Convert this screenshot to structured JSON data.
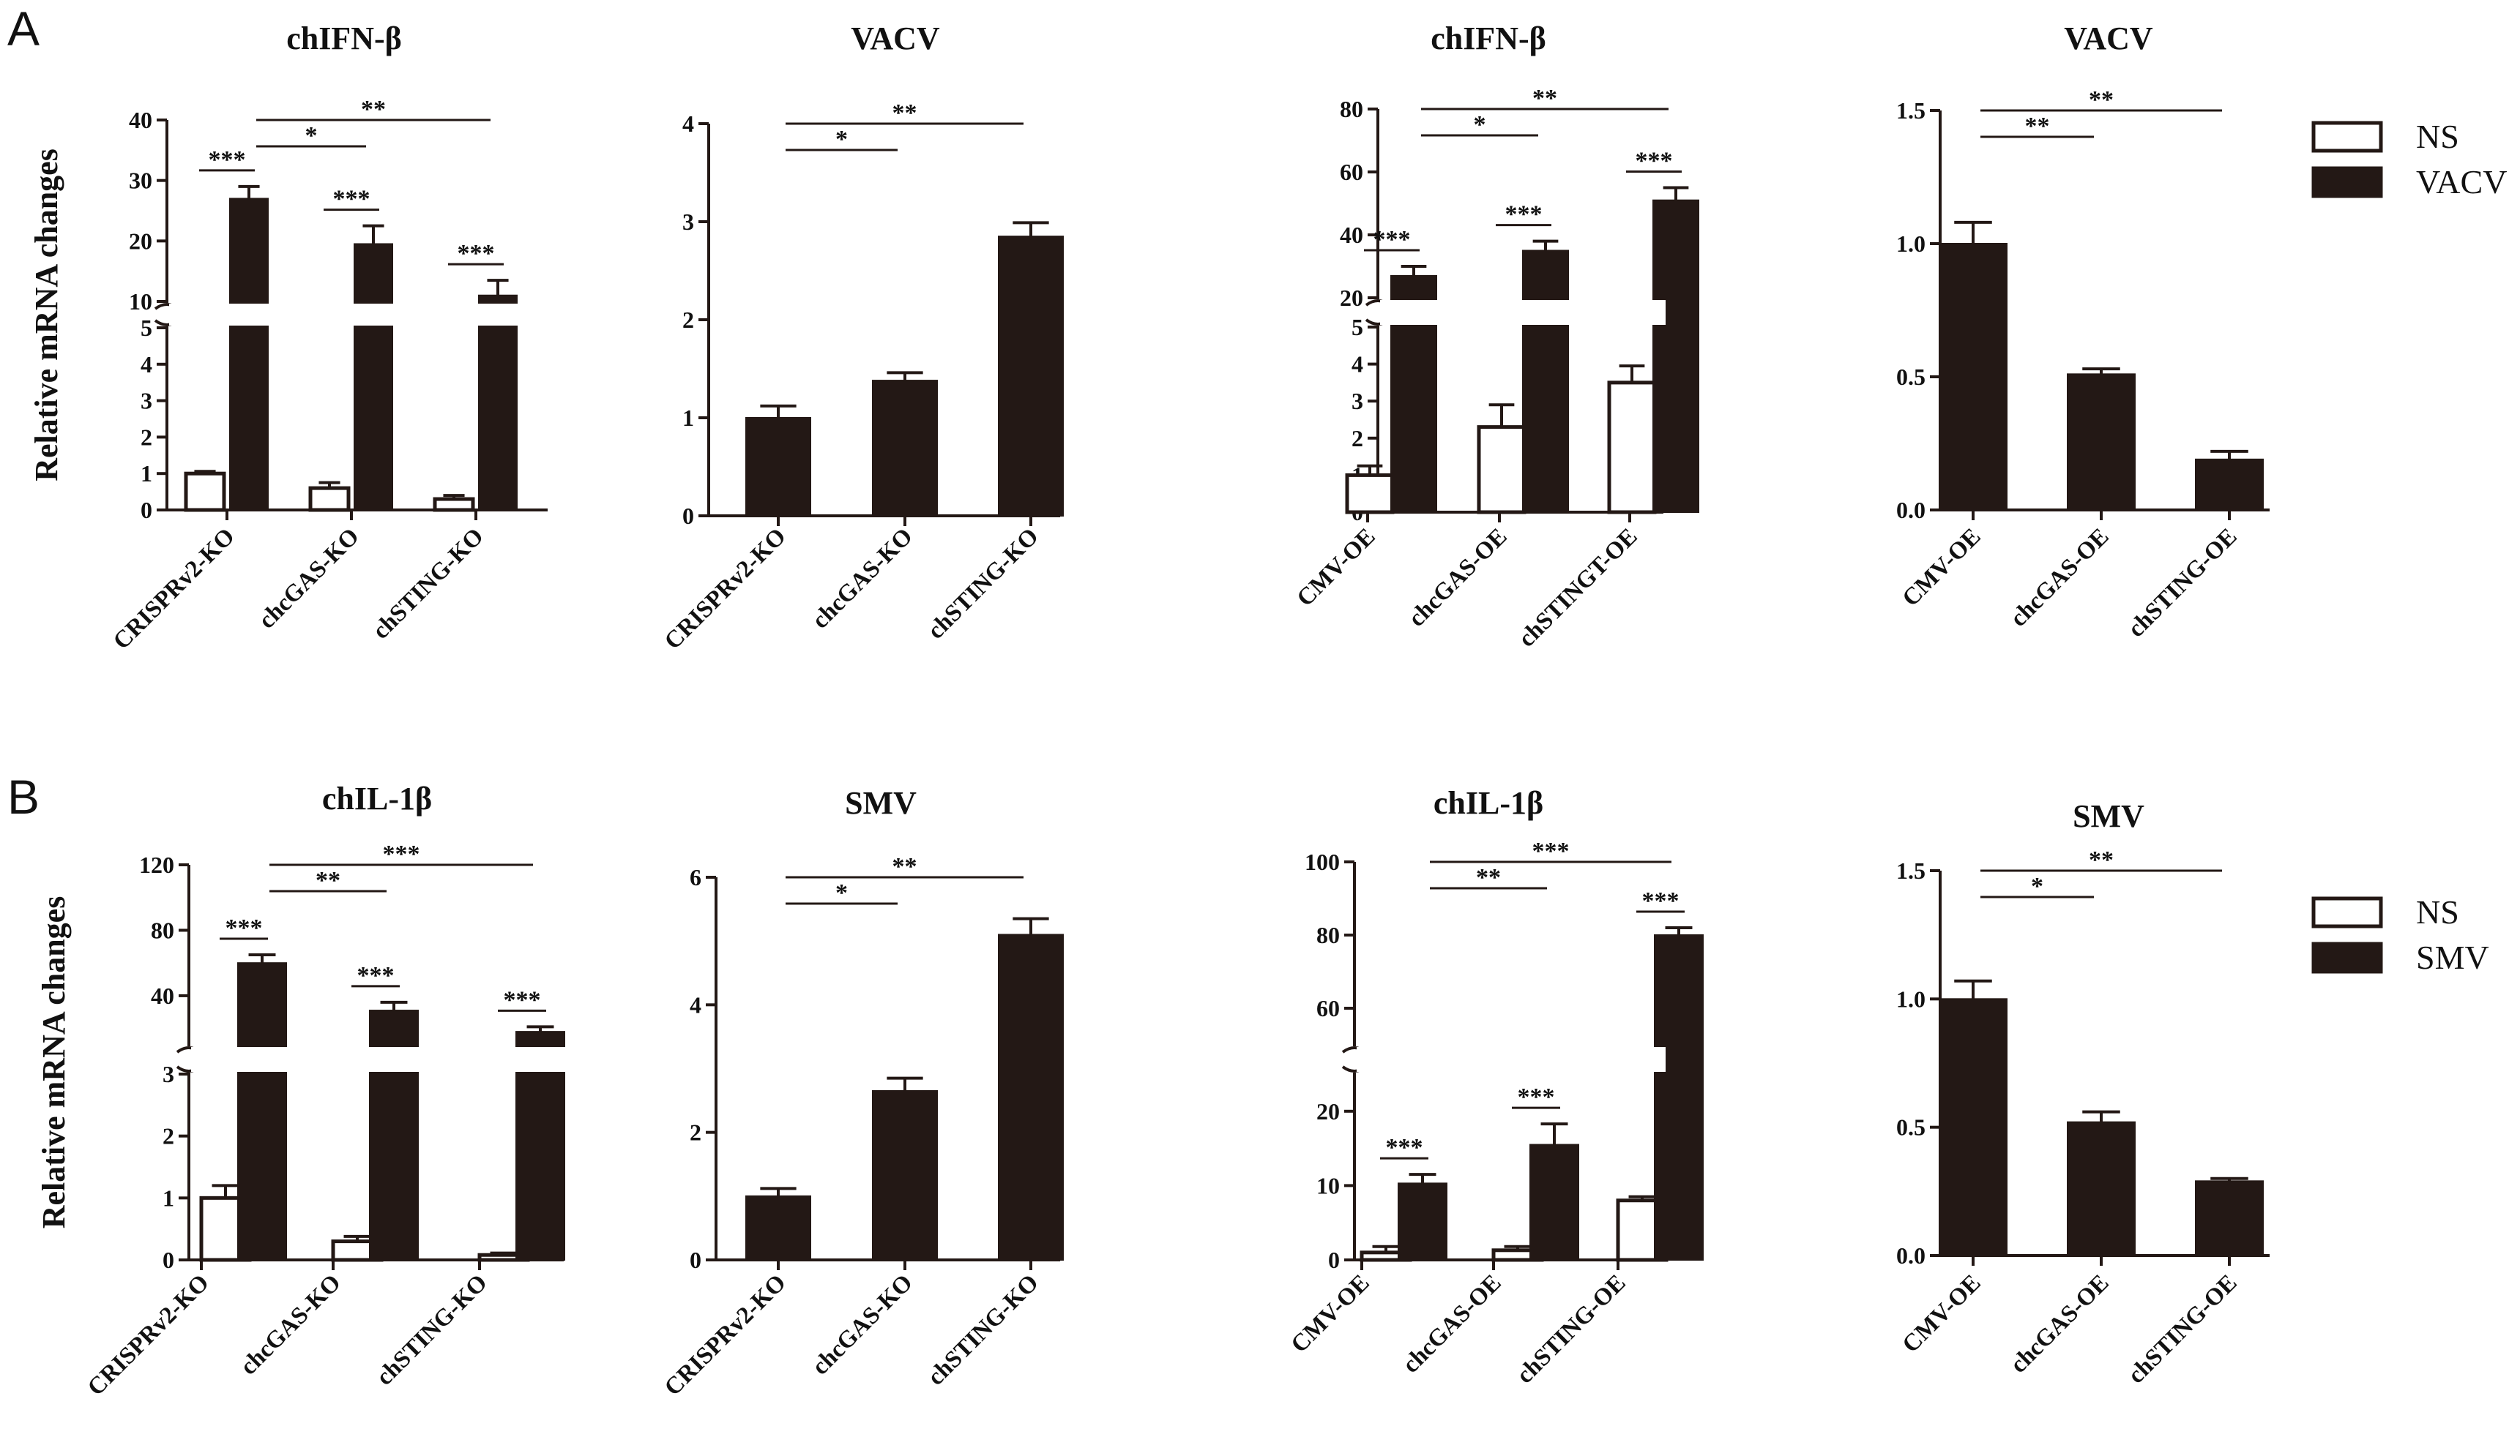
{
  "panel_labels": [
    "A",
    "B"
  ],
  "y_axis_label": "Relative mRNA changes",
  "legends": [
    {
      "entries": [
        {
          "label": "NS",
          "color": "#ffffff"
        },
        {
          "label": "VACV",
          "color": "#231815"
        }
      ]
    },
    {
      "entries": [
        {
          "label": "NS",
          "color": "#ffffff"
        },
        {
          "label": "SMV",
          "color": "#231815"
        }
      ]
    }
  ],
  "chart_data": [
    {
      "type": "bar",
      "title": "chIFN-β",
      "ylabel": "Relative mRNA changes",
      "broken_axis": true,
      "categories": [
        "CRISPRv2-KO",
        "chcGAS-KO",
        "chSTING-KO"
      ],
      "series": [
        {
          "name": "NS",
          "values": [
            1.0,
            0.6,
            0.3
          ],
          "errors": [
            0.06,
            0.15,
            0.1
          ]
        },
        {
          "name": "VACV",
          "values": [
            27,
            19.5,
            11
          ],
          "errors": [
            2,
            3,
            2.5
          ]
        }
      ],
      "ylim_lower": [
        0,
        5
      ],
      "ylim_upper": [
        10,
        40
      ],
      "yticks_lower": [
        0,
        1,
        2,
        3,
        4,
        5
      ],
      "yticks_upper": [
        10,
        20,
        30,
        40
      ],
      "ytick_labels_lower": [
        "0",
        "1",
        "2",
        "3",
        "4",
        "5"
      ],
      "ytick_labels_upper": [
        "10",
        "20",
        "30",
        "40"
      ],
      "annotations": [
        {
          "text": "***",
          "from": "CRISPRv2-KO:NS",
          "to": "CRISPRv2-KO:VACV"
        },
        {
          "text": "***",
          "from": "chcGAS-KO:NS",
          "to": "chcGAS-KO:VACV"
        },
        {
          "text": "***",
          "from": "chSTING-KO:NS",
          "to": "chSTING-KO:VACV"
        },
        {
          "text": "*",
          "from": "CRISPRv2-KO:VACV",
          "to": "chcGAS-KO:VACV"
        },
        {
          "text": "**",
          "from": "CRISPRv2-KO:VACV",
          "to": "chSTING-KO:VACV"
        }
      ]
    },
    {
      "type": "bar",
      "title": "VACV",
      "categories": [
        "CRISPRv2-KO",
        "chcGAS-KO",
        "chSTING-KO"
      ],
      "series": [
        {
          "name": "VACV",
          "values": [
            1.0,
            1.38,
            2.85
          ],
          "errors": [
            0.12,
            0.08,
            0.14
          ]
        }
      ],
      "ylim": [
        0,
        4
      ],
      "yticks": [
        0,
        1,
        2,
        3,
        4
      ],
      "ytick_labels": [
        "0",
        "1",
        "2",
        "3",
        "4"
      ],
      "annotations": [
        {
          "text": "*",
          "from": "CRISPRv2-KO:VACV",
          "to": "chcGAS-KO:VACV"
        },
        {
          "text": "**",
          "from": "CRISPRv2-KO:VACV",
          "to": "chSTING-KO:VACV"
        }
      ]
    },
    {
      "type": "bar",
      "title": "chIFN-β",
      "broken_axis": true,
      "categories": [
        "CMV-OE",
        "chcGAS-OE",
        "chSTINGT-OE"
      ],
      "series": [
        {
          "name": "NS",
          "values": [
            1.0,
            2.3,
            3.5
          ],
          "errors": [
            0.25,
            0.6,
            0.45
          ]
        },
        {
          "name": "VACV",
          "values": [
            27,
            35,
            51
          ],
          "errors": [
            3,
            3,
            4
          ]
        }
      ],
      "ylim_lower": [
        0,
        5
      ],
      "ylim_upper": [
        20,
        80
      ],
      "yticks_lower": [
        0,
        1,
        2,
        3,
        4,
        5
      ],
      "yticks_upper": [
        20,
        40,
        60,
        80
      ],
      "ytick_labels_lower": [
        "0",
        "1",
        "2",
        "3",
        "4",
        "5"
      ],
      "ytick_labels_upper": [
        "20",
        "40",
        "60",
        "80"
      ],
      "annotations": [
        {
          "text": "***",
          "from": "CMV-OE:NS",
          "to": "CMV-OE:VACV"
        },
        {
          "text": "***",
          "from": "chcGAS-OE:NS",
          "to": "chcGAS-OE:VACV"
        },
        {
          "text": "***",
          "from": "chSTINGT-OE:NS",
          "to": "chSTINGT-OE:VACV"
        },
        {
          "text": "*",
          "from": "CMV-OE:VACV",
          "to": "chcGAS-OE:VACV"
        },
        {
          "text": "**",
          "from": "CMV-OE:VACV",
          "to": "chSTINGT-OE:VACV"
        }
      ]
    },
    {
      "type": "bar",
      "title": "VACV",
      "categories": [
        "CMV-OE",
        "chcGAS-OE",
        "chSTING-OE"
      ],
      "series": [
        {
          "name": "VACV",
          "values": [
            1.0,
            0.51,
            0.19
          ],
          "errors": [
            0.08,
            0.02,
            0.03
          ]
        }
      ],
      "ylim": [
        0,
        1.5
      ],
      "yticks": [
        0,
        0.5,
        1.0,
        1.5
      ],
      "ytick_labels": [
        "0.0",
        "0.5",
        "1.0",
        "1.5"
      ],
      "annotations": [
        {
          "text": "**",
          "from": "CMV-OE:VACV",
          "to": "chcGAS-OE:VACV"
        },
        {
          "text": "**",
          "from": "CMV-OE:VACV",
          "to": "chSTING-OE:VACV"
        }
      ]
    },
    {
      "type": "bar",
      "title": "chIL-1β",
      "ylabel": "Relative mRNA changes",
      "broken_axis": true,
      "categories": [
        "CRISPRv2-KO",
        "chcGAS-KO",
        "chSTING-KO"
      ],
      "series": [
        {
          "name": "NS",
          "values": [
            1.0,
            0.3,
            0.08
          ],
          "errors": [
            0.2,
            0.08,
            0.03
          ]
        },
        {
          "name": "SMV",
          "values": [
            60,
            31,
            18
          ],
          "errors": [
            5,
            5,
            3
          ]
        }
      ],
      "ylim_lower": [
        0,
        3
      ],
      "ylim_upper": [
        10,
        120
      ],
      "yticks_lower": [
        0,
        1,
        2,
        3
      ],
      "yticks_upper": [
        40,
        80,
        120
      ],
      "ytick_labels_lower": [
        "0",
        "1",
        "2",
        "3"
      ],
      "ytick_labels_upper": [
        "40",
        "80",
        "120"
      ],
      "annotations": [
        {
          "text": "***",
          "from": "CRISPRv2-KO:NS",
          "to": "CRISPRv2-KO:SMV"
        },
        {
          "text": "***",
          "from": "chcGAS-KO:NS",
          "to": "chcGAS-KO:SMV"
        },
        {
          "text": "***",
          "from": "chSTING-KO:NS",
          "to": "chSTING-KO:SMV"
        },
        {
          "text": "**",
          "from": "CRISPRv2-KO:SMV",
          "to": "chcGAS-KO:SMV"
        },
        {
          "text": "***",
          "from": "CRISPRv2-KO:SMV",
          "to": "chSTING-KO:SMV"
        }
      ]
    },
    {
      "type": "bar",
      "title": "SMV",
      "categories": [
        "CRISPRv2-KO",
        "chcGAS-KO",
        "chSTING-KO"
      ],
      "series": [
        {
          "name": "SMV",
          "values": [
            1.0,
            2.65,
            5.1
          ],
          "errors": [
            0.12,
            0.2,
            0.25
          ]
        }
      ],
      "ylim": [
        0,
        6
      ],
      "yticks": [
        0,
        2,
        4,
        6
      ],
      "ytick_labels": [
        "0",
        "2",
        "4",
        "6"
      ],
      "annotations": [
        {
          "text": "*",
          "from": "CRISPRv2-KO:SMV",
          "to": "chcGAS-KO:SMV"
        },
        {
          "text": "**",
          "from": "CRISPRv2-KO:SMV",
          "to": "chSTING-KO:SMV"
        }
      ]
    },
    {
      "type": "bar",
      "title": "chIL-1β",
      "broken_axis": true,
      "categories": [
        "CMV-OE",
        "chcGAS-OE",
        "chSTING-OE"
      ],
      "series": [
        {
          "name": "NS",
          "values": [
            1.0,
            1.3,
            8.0
          ],
          "errors": [
            0.8,
            0.5,
            0.5
          ]
        },
        {
          "name": "SMV",
          "values": [
            10.3,
            15.5,
            80
          ],
          "errors": [
            1.2,
            2.8,
            2.0
          ]
        }
      ],
      "ylim_lower": [
        0,
        25
      ],
      "ylim_upper": [
        50,
        100
      ],
      "yticks_lower": [
        0,
        10,
        20
      ],
      "yticks_upper": [
        60,
        80,
        100
      ],
      "ytick_labels_lower": [
        "0",
        "10",
        "20"
      ],
      "ytick_labels_upper": [
        "60",
        "80",
        "100"
      ],
      "annotations": [
        {
          "text": "***",
          "from": "CMV-OE:NS",
          "to": "CMV-OE:SMV"
        },
        {
          "text": "***",
          "from": "chcGAS-OE:NS",
          "to": "chcGAS-OE:SMV"
        },
        {
          "text": "***",
          "from": "chSTING-OE:NS",
          "to": "chSTING-OE:SMV"
        },
        {
          "text": "**",
          "from": "CMV-OE:SMV",
          "to": "chcGAS-OE:SMV"
        },
        {
          "text": "***",
          "from": "CMV-OE:SMV",
          "to": "chSTING-OE:SMV"
        }
      ]
    },
    {
      "type": "bar",
      "title": "SMV",
      "categories": [
        "CMV-OE",
        "chcGAS-OE",
        "chSTING-OE"
      ],
      "series": [
        {
          "name": "SMV",
          "values": [
            1.0,
            0.52,
            0.29
          ],
          "errors": [
            0.07,
            0.04,
            0.01
          ]
        }
      ],
      "ylim": [
        0,
        1.5
      ],
      "yticks": [
        0,
        0.5,
        1.0,
        1.5
      ],
      "ytick_labels": [
        "0.0",
        "0.5",
        "1.0",
        "1.5"
      ],
      "annotations": [
        {
          "text": "*",
          "from": "CMV-OE:SMV",
          "to": "chcGAS-OE:SMV"
        },
        {
          "text": "**",
          "from": "CMV-OE:SMV",
          "to": "chSTING-OE:SMV"
        }
      ]
    }
  ]
}
